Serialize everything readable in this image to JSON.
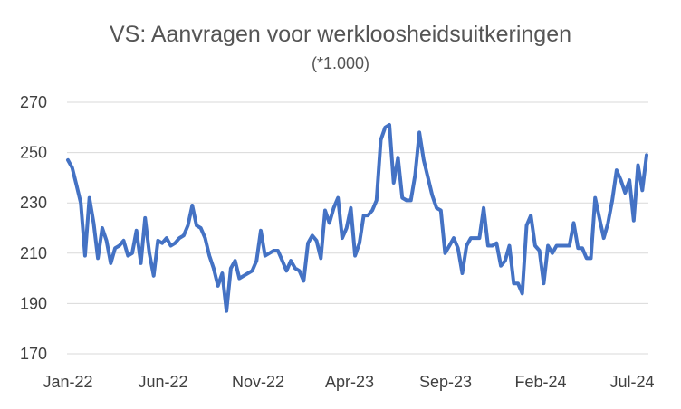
{
  "chart_data": {
    "type": "line",
    "title": "VS: Aanvragen voor werkloosheidsuitkeringen",
    "subtitle": "(*1.000)",
    "xlabel": "",
    "ylabel": "",
    "ylim": [
      170,
      270
    ],
    "yticks": [
      170,
      190,
      210,
      230,
      250,
      270
    ],
    "xtick_labels": [
      "Jan-22",
      "Jun-22",
      "Nov-22",
      "Apr-23",
      "Sep-23",
      "Feb-24",
      "Jul-24"
    ],
    "grid": true,
    "legend": "none",
    "colors": {
      "series": "#4472c4",
      "grid": "#d9d9d9",
      "text": "#595959"
    },
    "series": [
      {
        "values": [
          247,
          244,
          237,
          230,
          209,
          232,
          222,
          208,
          220,
          215,
          206,
          212,
          213,
          215,
          209,
          210,
          219,
          206,
          224,
          210,
          201,
          215,
          214,
          216,
          213,
          214,
          216,
          217,
          221,
          229,
          221,
          220,
          216,
          209,
          204,
          197,
          202,
          187,
          204,
          207,
          200,
          201,
          202,
          203,
          207,
          219,
          209,
          210,
          211,
          211,
          207,
          203,
          207,
          204,
          203,
          199,
          214,
          217,
          215,
          208,
          227,
          222,
          228,
          232,
          216,
          220,
          228,
          209,
          214,
          225,
          225,
          227,
          231,
          255,
          260,
          261,
          238,
          248,
          232,
          231,
          231,
          241,
          258,
          247,
          240,
          233,
          228,
          227,
          210,
          213,
          216,
          212,
          202,
          213,
          216,
          216,
          216,
          228,
          213,
          213,
          214,
          205,
          207,
          213,
          198,
          198,
          194,
          221,
          225,
          213,
          211,
          198,
          213,
          210,
          213,
          213,
          213,
          213,
          222,
          212,
          212,
          208,
          208,
          232,
          224,
          216,
          222,
          231,
          243,
          239,
          234,
          239,
          223,
          245,
          235,
          249
        ]
      }
    ]
  }
}
